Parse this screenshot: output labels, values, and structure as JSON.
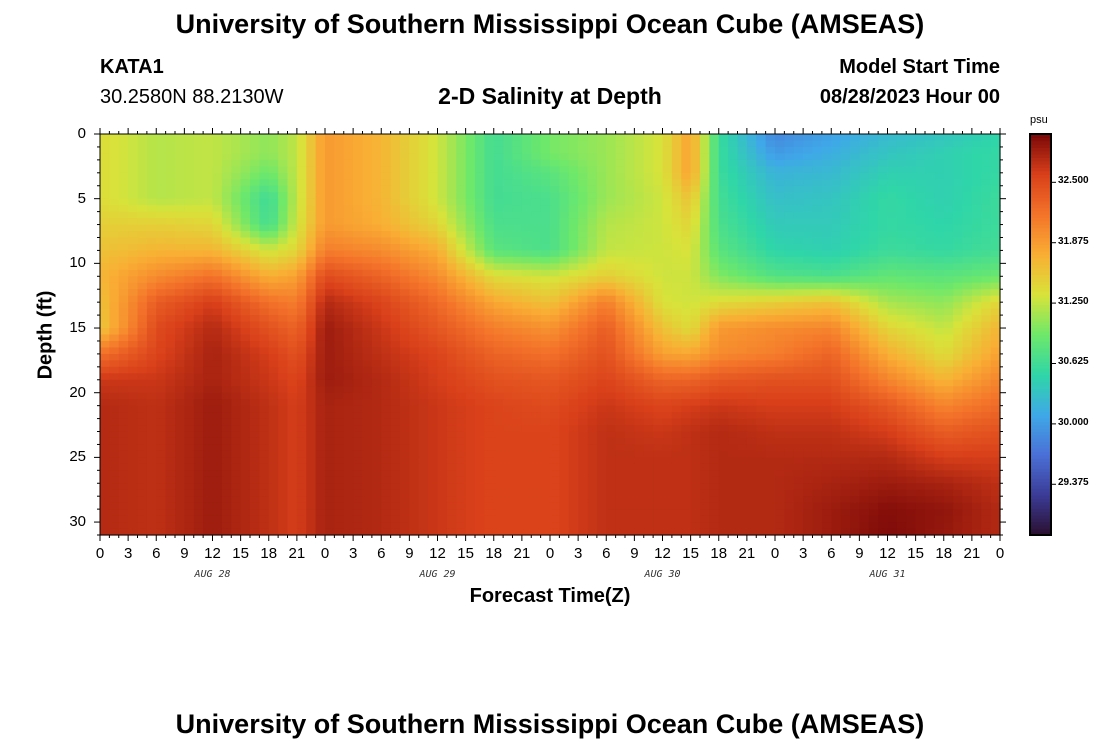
{
  "header": {
    "title": "University of Southern Mississippi Ocean Cube (AMSEAS)",
    "station": "KATA1",
    "coords": "30.2580N  88.2130W",
    "subtitle": "2-D Salinity at Depth",
    "model_start_label": "Model Start Time",
    "model_start_value": "08/28/2023 Hour 00"
  },
  "footer": {
    "title": "University of Southern Mississippi Ocean Cube (AMSEAS)"
  },
  "chart_data": {
    "type": "heatmap",
    "title": "2-D Salinity at Depth",
    "xlabel": "Forecast Time(Z)",
    "ylabel": "Depth (ft)",
    "x_hours_range": [
      0,
      96
    ],
    "ylim": [
      0,
      31
    ],
    "y_inverted": true,
    "x_tick_labels": [
      "0",
      "3",
      "6",
      "9",
      "12",
      "15",
      "18",
      "21",
      "0",
      "3",
      "6",
      "9",
      "12",
      "15",
      "18",
      "21",
      "0",
      "3",
      "6",
      "9",
      "12",
      "15",
      "18",
      "21",
      "0",
      "3",
      "6",
      "9",
      "12",
      "15",
      "18",
      "21",
      "0"
    ],
    "x_tick_hours": [
      0,
      3,
      6,
      9,
      12,
      15,
      18,
      21,
      24,
      27,
      30,
      33,
      36,
      39,
      42,
      45,
      48,
      51,
      54,
      57,
      60,
      63,
      66,
      69,
      72,
      75,
      78,
      81,
      84,
      87,
      90,
      93,
      96
    ],
    "y_ticks": [
      0,
      5,
      10,
      15,
      20,
      25,
      30
    ],
    "day_labels": [
      {
        "text": "AUG 28",
        "hour": 12
      },
      {
        "text": "AUG 29",
        "hour": 36
      },
      {
        "text": "AUG 30",
        "hour": 60
      },
      {
        "text": "AUG 31",
        "hour": 84
      }
    ],
    "colorbar": {
      "units": "psu",
      "min": 28.85,
      "max": 33.0,
      "tick_values": [
        32.5,
        31.875,
        31.25,
        30.625,
        30.0,
        29.375
      ],
      "tick_labels": [
        "32.500",
        "31.875",
        "31.250",
        "30.625",
        "30.000",
        "29.375"
      ],
      "colors": [
        "#2a0f2e",
        "#3b3b96",
        "#4a6fd6",
        "#3fa8e8",
        "#2fd6a8",
        "#6ee86a",
        "#d8e33a",
        "#f9ae34",
        "#f4742a",
        "#d9401a",
        "#7a0808"
      ]
    },
    "depth_levels": [
      0,
      1.5,
      3,
      5,
      7,
      9,
      11,
      13,
      15,
      17,
      19,
      21,
      23,
      25,
      27,
      29,
      31
    ],
    "time_hours": [
      0,
      6,
      12,
      18,
      21,
      24,
      30,
      36,
      42,
      48,
      54,
      60,
      63,
      66,
      72,
      78,
      84,
      90,
      96
    ],
    "salinity_psu": [
      [
        31.4,
        31.2,
        31.25,
        31.05,
        31.25,
        31.9,
        31.7,
        31.3,
        30.65,
        30.95,
        31.1,
        31.35,
        31.85,
        30.6,
        29.85,
        30.05,
        30.25,
        30.35,
        30.5
      ],
      [
        31.4,
        31.2,
        31.25,
        31.05,
        31.25,
        31.9,
        31.7,
        31.3,
        30.65,
        30.95,
        31.1,
        31.35,
        31.85,
        30.6,
        30.0,
        30.15,
        30.35,
        30.45,
        30.55
      ],
      [
        31.4,
        31.2,
        31.25,
        30.9,
        31.25,
        31.9,
        31.7,
        31.3,
        30.65,
        30.8,
        31.1,
        31.35,
        31.85,
        30.6,
        30.2,
        30.25,
        30.45,
        30.45,
        30.55
      ],
      [
        31.4,
        31.2,
        31.25,
        30.6,
        31.25,
        31.9,
        31.7,
        31.3,
        30.65,
        30.7,
        31.1,
        31.3,
        31.6,
        30.65,
        30.3,
        30.35,
        30.55,
        30.45,
        30.6
      ],
      [
        31.5,
        31.5,
        31.45,
        30.65,
        31.3,
        31.9,
        31.75,
        31.45,
        30.7,
        30.7,
        31.2,
        31.3,
        31.45,
        30.7,
        30.4,
        30.4,
        30.55,
        30.5,
        30.6
      ],
      [
        31.6,
        31.7,
        31.7,
        31.3,
        31.45,
        32.1,
        32.0,
        31.75,
        30.8,
        30.7,
        31.25,
        31.3,
        31.35,
        30.8,
        30.5,
        30.45,
        30.6,
        30.55,
        30.65
      ],
      [
        31.7,
        32.0,
        32.2,
        31.75,
        31.85,
        32.5,
        32.3,
        32.0,
        31.4,
        31.3,
        31.5,
        31.3,
        31.3,
        31.0,
        30.75,
        30.7,
        30.85,
        30.8,
        30.9
      ],
      [
        31.6,
        32.35,
        32.6,
        32.2,
        32.1,
        32.75,
        32.55,
        32.25,
        31.8,
        31.6,
        32.1,
        31.35,
        31.3,
        31.4,
        31.5,
        31.6,
        31.15,
        31.05,
        31.45
      ],
      [
        31.55,
        32.5,
        32.75,
        32.45,
        32.3,
        32.85,
        32.65,
        32.4,
        32.1,
        31.95,
        32.35,
        31.6,
        31.4,
        31.9,
        32.0,
        32.05,
        31.45,
        31.25,
        31.7
      ],
      [
        32.2,
        32.55,
        32.8,
        32.6,
        32.45,
        32.85,
        32.7,
        32.55,
        32.3,
        32.2,
        32.45,
        31.85,
        31.8,
        32.0,
        32.1,
        32.3,
        31.75,
        31.4,
        31.85
      ],
      [
        32.65,
        32.65,
        32.8,
        32.65,
        32.55,
        32.85,
        32.75,
        32.6,
        32.45,
        32.4,
        32.55,
        32.3,
        32.3,
        32.4,
        32.45,
        32.45,
        32.05,
        31.7,
        32.05
      ],
      [
        32.75,
        32.7,
        32.85,
        32.7,
        32.6,
        32.8,
        32.75,
        32.65,
        32.55,
        32.5,
        32.65,
        32.55,
        32.6,
        32.65,
        32.6,
        32.6,
        32.4,
        32.05,
        32.25
      ],
      [
        32.75,
        32.7,
        32.85,
        32.7,
        32.6,
        32.8,
        32.75,
        32.65,
        32.55,
        32.55,
        32.7,
        32.65,
        32.7,
        32.75,
        32.7,
        32.7,
        32.6,
        32.35,
        32.45
      ],
      [
        32.75,
        32.7,
        32.85,
        32.7,
        32.6,
        32.8,
        32.75,
        32.65,
        32.55,
        32.55,
        32.7,
        32.7,
        32.7,
        32.75,
        32.75,
        32.75,
        32.75,
        32.6,
        32.6
      ],
      [
        32.75,
        32.7,
        32.85,
        32.7,
        32.6,
        32.8,
        32.75,
        32.65,
        32.55,
        32.55,
        32.7,
        32.7,
        32.7,
        32.75,
        32.75,
        32.8,
        32.85,
        32.8,
        32.7
      ],
      [
        32.75,
        32.7,
        32.85,
        32.7,
        32.6,
        32.8,
        32.75,
        32.65,
        32.55,
        32.55,
        32.7,
        32.7,
        32.7,
        32.75,
        32.75,
        32.85,
        32.95,
        32.9,
        32.75
      ],
      [
        32.75,
        32.7,
        32.85,
        32.7,
        32.6,
        32.8,
        32.75,
        32.65,
        32.55,
        32.55,
        32.7,
        32.7,
        32.7,
        32.75,
        32.75,
        32.85,
        32.98,
        32.88,
        32.75
      ]
    ]
  }
}
